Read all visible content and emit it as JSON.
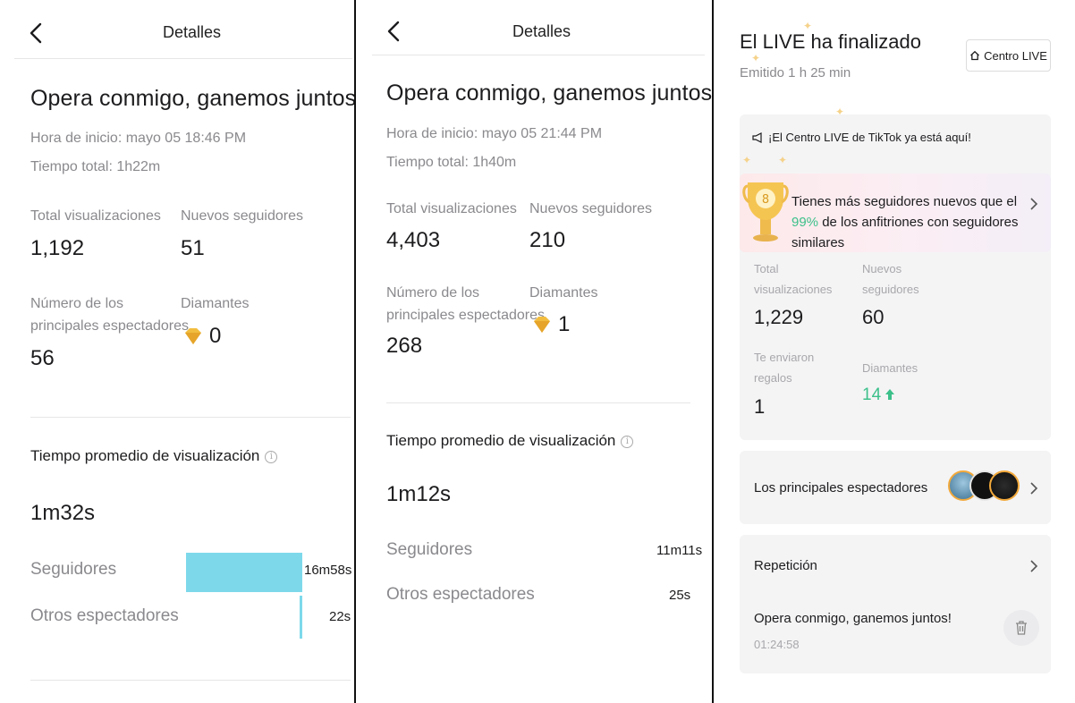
{
  "panel1": {
    "header_title": "Detalles",
    "title": "Opera conmigo, ganemos juntos!",
    "start_time": "Hora de inicio: mayo 05 18:46 PM",
    "total_time": "Tiempo total: 1h22m",
    "stats": {
      "total_views_label": "Total visualizaciones",
      "total_views_value": "1,192",
      "new_followers_label": "Nuevos seguidores",
      "new_followers_value": "51",
      "top_viewers_label_1": "Número de los",
      "top_viewers_label_2": "principales espectadores",
      "top_viewers_value": "56",
      "diamonds_label": "Diamantes",
      "diamonds_value": "0"
    },
    "avg_watch": {
      "title": "Tiempo promedio de visualización",
      "value": "1m32s",
      "rows": [
        {
          "label": "Seguidores",
          "time": "16m58s",
          "fraction": 1.0
        },
        {
          "label": "Otros espectadores",
          "time": "22s",
          "fraction": 0.022
        }
      ]
    }
  },
  "panel2": {
    "header_title": "Detalles",
    "title": "Opera conmigo, ganemos juntos!",
    "start_time": "Hora de inicio: mayo 05 21:44 PM",
    "total_time": "Tiempo total: 1h40m",
    "stats": {
      "total_views_label": "Total visualizaciones",
      "total_views_value": "4,403",
      "new_followers_label": "Nuevos seguidores",
      "new_followers_value": "210",
      "top_viewers_label_1": "Número de los",
      "top_viewers_label_2": "principales espectadores",
      "top_viewers_value": "268",
      "diamonds_label": "Diamantes",
      "diamonds_value": "1"
    },
    "avg_watch": {
      "title": "Tiempo promedio de visualización",
      "value": "1m12s",
      "rows": [
        {
          "label": "Seguidores",
          "time": "11m11s",
          "fraction": 1.0
        },
        {
          "label": "Otros espectadores",
          "time": "25s",
          "fraction": 0.037
        }
      ]
    }
  },
  "panel3": {
    "title": "El LIVE ha finalizado",
    "subtitle": "Emitido 1 h 25 min",
    "centro_button": "Centro LIVE",
    "announcement": "¡El Centro LIVE de TikTok ya está aquí!",
    "promo_line1": "Tienes más seguidores nuevos que el",
    "promo_pct": "99%",
    "promo_line2_rest": " de los anfitriones con seguidores",
    "promo_line3": "similares",
    "stats": {
      "total_views_label_1": "Total",
      "total_views_label_2": "visualizaciones",
      "total_views_value": "1,229",
      "new_followers_label_1": "Nuevos",
      "new_followers_label_2": "seguidores",
      "new_followers_value": "60",
      "gifts_label_1": "Te enviaron",
      "gifts_label_2": "regalos",
      "gifts_value": "1",
      "diamonds_label": "Diamantes",
      "diamonds_value": "14"
    },
    "top_viewers": "Los principales espectadores",
    "replay": {
      "title": "Repetición",
      "video_title": "Opera conmigo, ganemos juntos!",
      "duration": "01:24:58"
    }
  },
  "icons": {
    "back": "chevron-left-icon",
    "info": "info-icon",
    "diamond": "diamond-icon",
    "home": "home-icon",
    "megaphone": "megaphone-icon",
    "trophy": "trophy-icon",
    "chevron": "chevron-right-icon",
    "trash": "trash-icon",
    "arrow_up": "arrow-up-icon"
  },
  "colors": {
    "bar": "#7dd9ea",
    "green": "#3cc08a",
    "gray_text": "#8a8a8e"
  }
}
